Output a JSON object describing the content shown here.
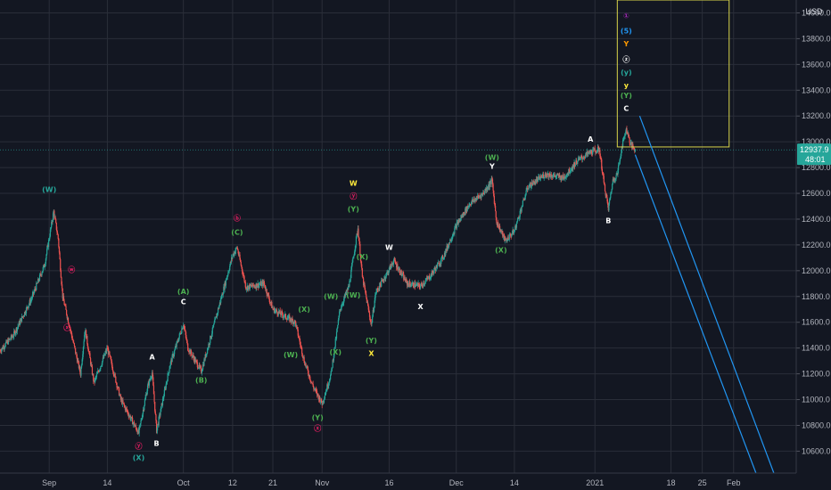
{
  "currency_label": "USD",
  "price_tag": {
    "value": "12937.9",
    "countdown": "48:01",
    "color": "#26a69a"
  },
  "colors": {
    "background": "#131722",
    "grid": "#2a2e39",
    "axis_text": "#b2b5be",
    "up": "#26a69a",
    "down": "#ef5350",
    "channel": "#2196f3",
    "box": "#d8d44a"
  },
  "chart_data": {
    "type": "candlestick",
    "title": "",
    "y_axis": {
      "side": "right",
      "range": [
        10430,
        14100
      ],
      "ticks": [
        "10600.0",
        "10800.0",
        "11000.0",
        "11200.0",
        "11400.0",
        "11600.0",
        "11800.0",
        "12000.0",
        "12200.0",
        "12400.0",
        "12600.0",
        "12800.0",
        "13000.0",
        "13200.0",
        "13400.0",
        "13600.0",
        "13800.0",
        "14000.0"
      ]
    },
    "x_axis": {
      "start": "2020-08-21",
      "end": "2021-02-15",
      "ticks": [
        {
          "date": "2020-09-01",
          "label": "Sep"
        },
        {
          "date": "2020-09-14",
          "label": "14"
        },
        {
          "date": "2020-10-01",
          "label": "Oct"
        },
        {
          "date": "2020-10-12",
          "label": "12"
        },
        {
          "date": "2020-10-21",
          "label": "21"
        },
        {
          "date": "2020-11-01",
          "label": "Nov"
        },
        {
          "date": "2020-11-16",
          "label": "16"
        },
        {
          "date": "2020-12-01",
          "label": "Dec"
        },
        {
          "date": "2020-12-14",
          "label": "14"
        },
        {
          "date": "2021-01-01",
          "label": "2021"
        },
        {
          "date": "2021-01-18",
          "label": "18"
        },
        {
          "date": "2021-01-25",
          "label": "25"
        },
        {
          "date": "2021-02-01",
          "label": "Feb"
        }
      ]
    },
    "grid": true,
    "price_path": [
      {
        "date": "2020-08-21",
        "price": 11380
      },
      {
        "date": "2020-08-24",
        "price": 11500
      },
      {
        "date": "2020-08-28",
        "price": 11780
      },
      {
        "date": "2020-08-31",
        "price": 12050
      },
      {
        "date": "2020-09-02",
        "price": 12460
      },
      {
        "date": "2020-09-03",
        "price": 12250
      },
      {
        "date": "2020-09-04",
        "price": 11800
      },
      {
        "date": "2020-09-08",
        "price": 11200
      },
      {
        "date": "2020-09-09",
        "price": 11550
      },
      {
        "date": "2020-09-11",
        "price": 11130
      },
      {
        "date": "2020-09-14",
        "price": 11400
      },
      {
        "date": "2020-09-17",
        "price": 11000
      },
      {
        "date": "2020-09-21",
        "price": 10740
      },
      {
        "date": "2020-09-23",
        "price": 11100
      },
      {
        "date": "2020-09-24",
        "price": 11210
      },
      {
        "date": "2020-09-25",
        "price": 10760
      },
      {
        "date": "2020-09-28",
        "price": 11270
      },
      {
        "date": "2020-10-01",
        "price": 11590
      },
      {
        "date": "2020-10-02",
        "price": 11400
      },
      {
        "date": "2020-10-05",
        "price": 11220
      },
      {
        "date": "2020-10-08",
        "price": 11600
      },
      {
        "date": "2020-10-12",
        "price": 12120
      },
      {
        "date": "2020-10-13",
        "price": 12180
      },
      {
        "date": "2020-10-15",
        "price": 11870
      },
      {
        "date": "2020-10-19",
        "price": 11900
      },
      {
        "date": "2020-10-21",
        "price": 11700
      },
      {
        "date": "2020-10-26",
        "price": 11600
      },
      {
        "date": "2020-10-28",
        "price": 11300
      },
      {
        "date": "2020-10-30",
        "price": 11100
      },
      {
        "date": "2020-11-01",
        "price": 10970
      },
      {
        "date": "2020-11-03",
        "price": 11200
      },
      {
        "date": "2020-11-05",
        "price": 11700
      },
      {
        "date": "2020-11-07",
        "price": 11880
      },
      {
        "date": "2020-11-09",
        "price": 12330
      },
      {
        "date": "2020-11-10",
        "price": 11950
      },
      {
        "date": "2020-11-12",
        "price": 11580
      },
      {
        "date": "2020-11-13",
        "price": 11830
      },
      {
        "date": "2020-11-16",
        "price": 12010
      },
      {
        "date": "2020-11-17",
        "price": 12080
      },
      {
        "date": "2020-11-20",
        "price": 11900
      },
      {
        "date": "2020-11-23",
        "price": 11880
      },
      {
        "date": "2020-11-25",
        "price": 11950
      },
      {
        "date": "2020-11-28",
        "price": 12100
      },
      {
        "date": "2020-12-01",
        "price": 12350
      },
      {
        "date": "2020-12-04",
        "price": 12520
      },
      {
        "date": "2020-12-07",
        "price": 12600
      },
      {
        "date": "2020-12-09",
        "price": 12700
      },
      {
        "date": "2020-12-10",
        "price": 12380
      },
      {
        "date": "2020-12-12",
        "price": 12230
      },
      {
        "date": "2020-12-14",
        "price": 12310
      },
      {
        "date": "2020-12-17",
        "price": 12650
      },
      {
        "date": "2020-12-21",
        "price": 12750
      },
      {
        "date": "2020-12-25",
        "price": 12720
      },
      {
        "date": "2020-12-28",
        "price": 12850
      },
      {
        "date": "2020-12-31",
        "price": 12920
      },
      {
        "date": "2021-01-02",
        "price": 12940
      },
      {
        "date": "2021-01-03",
        "price": 12680
      },
      {
        "date": "2021-01-04",
        "price": 12480
      },
      {
        "date": "2021-01-05",
        "price": 12700
      },
      {
        "date": "2021-01-06",
        "price": 12750
      },
      {
        "date": "2021-01-07",
        "price": 12960
      },
      {
        "date": "2021-01-08",
        "price": 13100
      },
      {
        "date": "2021-01-09",
        "price": 12980
      },
      {
        "date": "2021-01-10",
        "price": 12938
      }
    ],
    "channel": {
      "upper": [
        {
          "date": "2021-01-11",
          "price": 13200
        },
        {
          "date": "2021-02-10",
          "price": 10430
        }
      ],
      "lower": [
        {
          "date": "2021-01-10",
          "price": 12900
        },
        {
          "date": "2021-02-06",
          "price": 10430
        }
      ]
    },
    "wave_box": {
      "from": "2021-01-06",
      "to": "2021-01-31",
      "high": 14100,
      "low": 12960
    },
    "wave_labels": [
      {
        "text": "(W)",
        "color": "#26a69a",
        "date": "2020-09-01",
        "price": 12610
      },
      {
        "text": "ⓦ",
        "color": "#e91e63",
        "date": "2020-09-06",
        "price": 11990
      },
      {
        "text": "ⓧ",
        "color": "#e91e63",
        "date": "2020-09-05",
        "price": 11540
      },
      {
        "text": "A",
        "color": "#ffffff",
        "date": "2020-09-24",
        "price": 11310
      },
      {
        "text": "ⓨ",
        "color": "#e91e63",
        "date": "2020-09-21",
        "price": 10620
      },
      {
        "text": "(X)",
        "color": "#26a69a",
        "date": "2020-09-21",
        "price": 10530
      },
      {
        "text": "B",
        "color": "#ffffff",
        "date": "2020-09-25",
        "price": 10640
      },
      {
        "text": "(A)",
        "color": "#4caf50",
        "date": "2020-10-01",
        "price": 11820
      },
      {
        "text": "C",
        "color": "#ffffff",
        "date": "2020-10-01",
        "price": 11740
      },
      {
        "text": "(B)",
        "color": "#4caf50",
        "date": "2020-10-05",
        "price": 11130
      },
      {
        "text": "ⓑ",
        "color": "#e91e63",
        "date": "2020-10-13",
        "price": 12390
      },
      {
        "text": "(C)",
        "color": "#4caf50",
        "date": "2020-10-13",
        "price": 12280
      },
      {
        "text": "(X)",
        "color": "#4caf50",
        "date": "2020-10-28",
        "price": 11680
      },
      {
        "text": "(W)",
        "color": "#4caf50",
        "date": "2020-10-25",
        "price": 11330
      },
      {
        "text": "(W)",
        "color": "#4caf50",
        "date": "2020-11-03",
        "price": 11780
      },
      {
        "text": "(X)",
        "color": "#4caf50",
        "date": "2020-11-04",
        "price": 11350
      },
      {
        "text": "(Y)",
        "color": "#4caf50",
        "date": "2020-10-31",
        "price": 10840
      },
      {
        "text": "ⓧ",
        "color": "#e91e63",
        "date": "2020-10-31",
        "price": 10760
      },
      {
        "text": "W",
        "color": "#ffeb3b",
        "date": "2020-11-08",
        "price": 12660
      },
      {
        "text": "ⓨ",
        "color": "#e91e63",
        "date": "2020-11-08",
        "price": 12560
      },
      {
        "text": "(Y)",
        "color": "#4caf50",
        "date": "2020-11-08",
        "price": 12460
      },
      {
        "text": "(X)",
        "color": "#4caf50",
        "date": "2020-11-10",
        "price": 12090
      },
      {
        "text": "(W)",
        "color": "#4caf50",
        "date": "2020-11-08",
        "price": 11790
      },
      {
        "text": "(Y)",
        "color": "#4caf50",
        "date": "2020-11-12",
        "price": 11440
      },
      {
        "text": "X",
        "color": "#ffeb3b",
        "date": "2020-11-12",
        "price": 11340
      },
      {
        "text": "W",
        "color": "#ffffff",
        "date": "2020-11-16",
        "price": 12160
      },
      {
        "text": "X",
        "color": "#ffffff",
        "date": "2020-11-23",
        "price": 11700
      },
      {
        "text": "(W)",
        "color": "#4caf50",
        "date": "2020-12-09",
        "price": 12860
      },
      {
        "text": "Y",
        "color": "#ffffff",
        "date": "2020-12-09",
        "price": 12790
      },
      {
        "text": "(X)",
        "color": "#4caf50",
        "date": "2020-12-11",
        "price": 12140
      },
      {
        "text": "A",
        "color": "#ffffff",
        "date": "2020-12-31",
        "price": 13000
      },
      {
        "text": "B",
        "color": "#ffffff",
        "date": "2021-01-04",
        "price": 12370
      },
      {
        "text": "C",
        "color": "#ffffff",
        "date": "2021-01-08",
        "price": 13240
      },
      {
        "text": "(Y)",
        "color": "#4caf50",
        "date": "2021-01-08",
        "price": 13340
      },
      {
        "text": "y",
        "color": "#ffeb3b",
        "date": "2021-01-08",
        "price": 13420
      },
      {
        "text": "(y)",
        "color": "#26a69a",
        "date": "2021-01-08",
        "price": 13520
      },
      {
        "text": "ⓩ",
        "color": "#ffffff",
        "date": "2021-01-08",
        "price": 13620
      },
      {
        "text": "Y",
        "color": "#ff9800",
        "date": "2021-01-08",
        "price": 13740
      },
      {
        "text": "(5)",
        "color": "#2196f3",
        "date": "2021-01-08",
        "price": 13840
      },
      {
        "text": "①",
        "color": "#9c27b0",
        "date": "2021-01-08",
        "price": 13960
      }
    ]
  }
}
